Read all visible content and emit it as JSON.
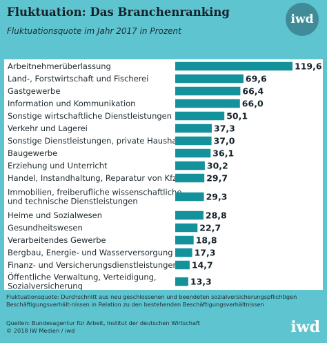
{
  "header": {
    "title": "Fluktuation: Das Branchenranking",
    "subtitle": "Fluktuationsquote im Jahr 2017 in Prozent",
    "logo_text": "iwd"
  },
  "colors": {
    "background": "#5ec5d0",
    "bar": "#14929c",
    "panel": "#ffffff"
  },
  "chart_data": {
    "type": "bar",
    "orientation": "horizontal",
    "title": "Fluktuation: Das Branchenranking",
    "subtitle": "Fluktuationsquote im Jahr 2017 in Prozent",
    "categories": [
      "Arbeitnehmerüberlassung",
      "Land-, Forstwirtschaft und Fischerei",
      "Gastgewerbe",
      "Information und Kommunikation",
      "Sonstige wirtschaftliche Dienstleistungen",
      "Verkehr und Lagerei",
      "Sonstige Dienstleistungen, private Haushalte",
      "Baugewerbe",
      "Erziehung und Unterricht",
      "Handel, Instandhaltung, Reparatur von Kfz",
      "Immobilien, freiberufliche wissenschaftliche und technische Dienstleistungen",
      "Heime und Sozialwesen",
      "Gesundheitswesen",
      "Verarbeitendes Gewerbe",
      "Bergbau, Energie- und Wasserversorgung",
      "Finanz- und Versicherungsdienstleistungen",
      "Öffentliche Verwaltung, Verteidigung, Sozialversicherung"
    ],
    "category_lines": [
      [
        "Arbeitnehmerüberlassung"
      ],
      [
        "Land-, Forstwirtschaft und Fischerei"
      ],
      [
        "Gastgewerbe"
      ],
      [
        "Information und Kommunikation"
      ],
      [
        "Sonstige wirtschaftliche Dienstleistungen"
      ],
      [
        "Verkehr und Lagerei"
      ],
      [
        "Sonstige Dienstleistungen, private Haushalte"
      ],
      [
        "Baugewerbe"
      ],
      [
        "Erziehung und Unterricht"
      ],
      [
        "Handel, Instandhaltung, Reparatur von Kfz"
      ],
      [
        "Immobilien, freiberufliche wissenschaftliche",
        "und technische Dienstleistungen"
      ],
      [
        "Heime und Sozialwesen"
      ],
      [
        "Gesundheitswesen"
      ],
      [
        "Verarbeitendes Gewerbe"
      ],
      [
        "Bergbau, Energie- und Wasserversorgung"
      ],
      [
        "Finanz- und Versicherungsdienstleistungen"
      ],
      [
        "Öffentliche Verwaltung, Verteidigung,",
        "Sozialversicherung"
      ]
    ],
    "values": [
      119.6,
      69.6,
      66.4,
      66.0,
      50.1,
      37.3,
      37.0,
      36.1,
      30.2,
      29.7,
      29.3,
      28.8,
      22.7,
      18.8,
      17.3,
      14.7,
      13.3
    ],
    "value_labels": [
      "119,6",
      "69,6",
      "66,4",
      "66,0",
      "50,1",
      "37,3",
      "37,0",
      "36,1",
      "30,2",
      "29,7",
      "29,3",
      "28,8",
      "22,7",
      "18,8",
      "17,3",
      "14,7",
      "13,3"
    ],
    "xlim": [
      0,
      119.6
    ],
    "grid": false,
    "legend": "none"
  },
  "footer": {
    "note": "Fluktuationsquote: Durchschnitt aus neu geschlossenen und beendeten sozialversicherungspflichtigen Beschäftigungsverhält-nissen in Relation zu den bestehenden Beschäftigungsverhältnissen",
    "source": "Quellen: Bundesagentur für Arbeit, Institut der deutschen Wirtschaft",
    "copyright": "© 2018 IW Medien / iwd",
    "logo_text": "iwd"
  }
}
